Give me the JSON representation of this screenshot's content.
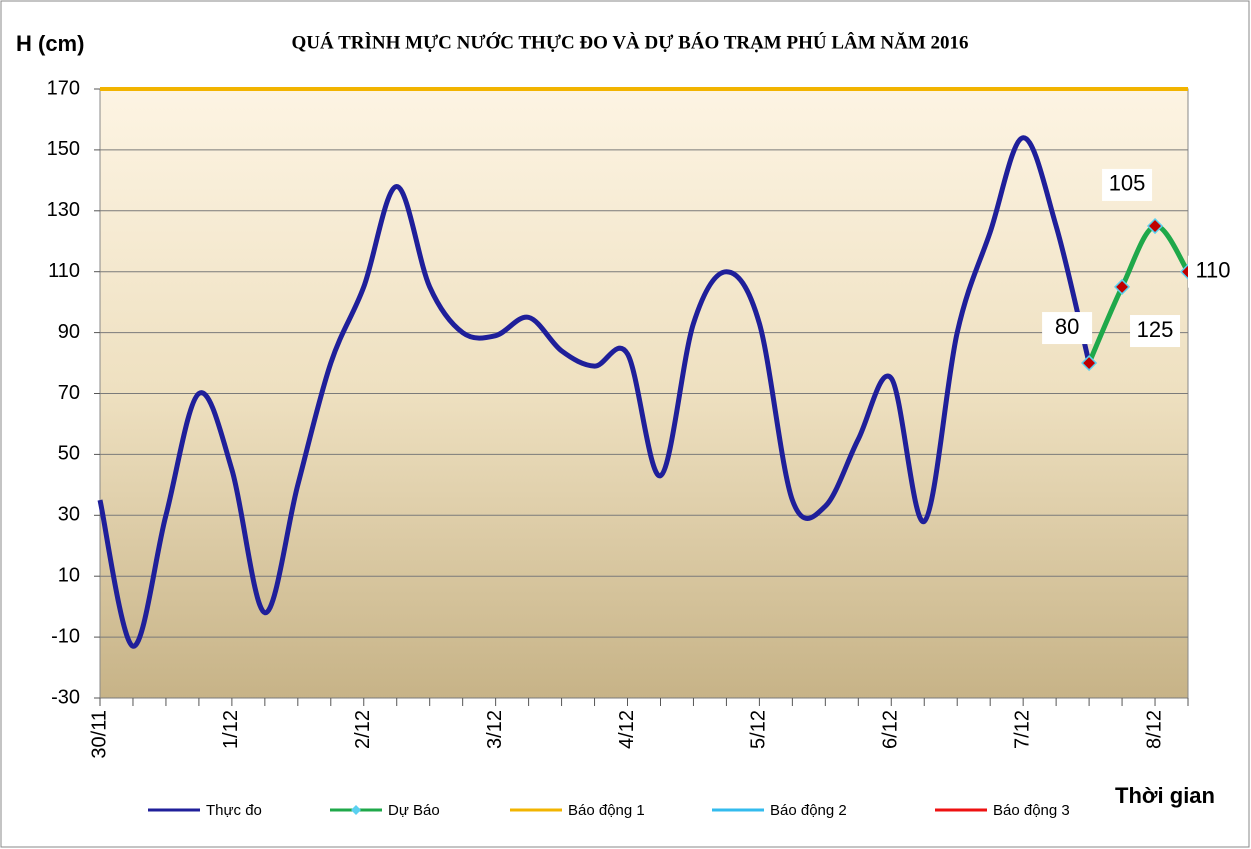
{
  "chart_data": {
    "type": "line",
    "title": "QUÁ TRÌNH MỰC NƯỚC THỰC ĐO VÀ DỰ BÁO TRẠM  PHÚ LÂM NĂM 2016",
    "y_label": "H (cm)",
    "x_label": "Thời gian",
    "categories": [
      "30/11",
      null,
      null,
      null,
      "1/12",
      null,
      null,
      null,
      "2/12",
      null,
      null,
      null,
      "3/12",
      null,
      null,
      null,
      "4/12",
      null,
      null,
      null,
      "5/12",
      null,
      null,
      null,
      "6/12",
      null,
      null,
      null,
      "7/12",
      null,
      null,
      null,
      "8/12",
      null
    ],
    "series": [
      {
        "name": "Thực đo",
        "color": "#1f1f9a",
        "values": [
          35,
          -13,
          30,
          70,
          45,
          -2,
          40,
          80,
          105,
          138,
          105,
          90,
          89,
          95,
          84,
          79,
          83,
          43,
          93,
          110,
          93,
          35,
          33,
          55,
          75,
          28,
          90,
          123,
          154,
          125,
          80,
          null,
          null,
          null
        ]
      },
      {
        "name": "Dự Báo",
        "color": "#1fa84a",
        "marker_color": "#c00000",
        "values": [
          null,
          null,
          null,
          null,
          null,
          null,
          null,
          null,
          null,
          null,
          null,
          null,
          null,
          null,
          null,
          null,
          null,
          null,
          null,
          null,
          null,
          null,
          null,
          null,
          null,
          null,
          null,
          null,
          null,
          null,
          80,
          105,
          125,
          110
        ]
      },
      {
        "name": "Báo động 1",
        "color": "#f2b400",
        "values": [
          170,
          170,
          170,
          170,
          170,
          170,
          170,
          170,
          170,
          170,
          170,
          170,
          170,
          170,
          170,
          170,
          170,
          170,
          170,
          170,
          170,
          170,
          170,
          170,
          170,
          170,
          170,
          170,
          170,
          170,
          170,
          170,
          170,
          170
        ]
      },
      {
        "name": "Báo động 2",
        "color": "#33bbee"
      },
      {
        "name": "Báo động 3",
        "color": "#ee1111"
      }
    ],
    "ylim": [
      -30,
      170
    ],
    "yticks": [
      -30,
      -10,
      10,
      30,
      50,
      70,
      90,
      110,
      130,
      150,
      170
    ],
    "grid": true
  }
}
